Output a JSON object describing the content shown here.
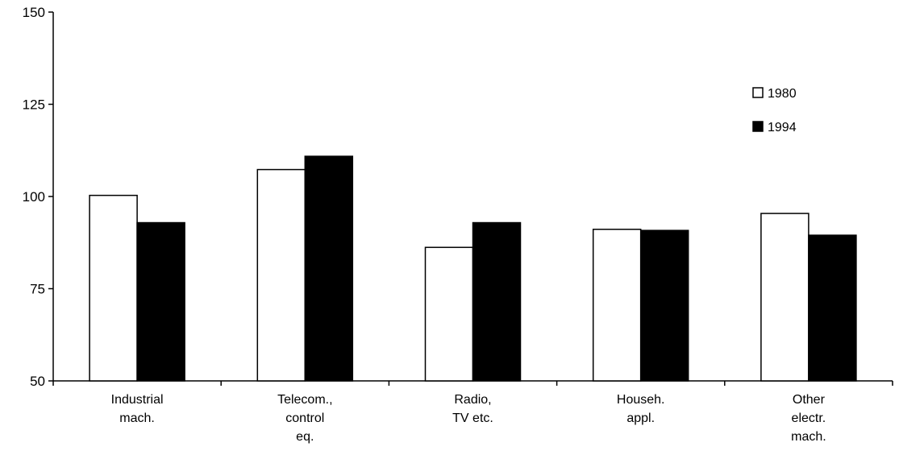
{
  "chart_data": {
    "type": "bar",
    "title": "",
    "xlabel": "",
    "ylabel": "",
    "ylim": [
      50,
      150
    ],
    "yticks": [
      50,
      75,
      100,
      125,
      150
    ],
    "grid": false,
    "legend_position": "top-right",
    "categories": [
      [
        "Industrial",
        "mach."
      ],
      [
        "Telecom.,",
        "control",
        "eq."
      ],
      [
        "Radio,",
        "TV etc."
      ],
      [
        "Househ.",
        "appl."
      ],
      [
        "Other",
        "electr.",
        "mach."
      ]
    ],
    "series": [
      {
        "name": "1980",
        "color": "#ffffff",
        "values": [
          100.3,
          107.3,
          86.2,
          91.1,
          95.4
        ]
      },
      {
        "name": "1994",
        "color": "#000000",
        "values": [
          92.9,
          110.9,
          92.9,
          90.8,
          89.5
        ]
      }
    ]
  }
}
